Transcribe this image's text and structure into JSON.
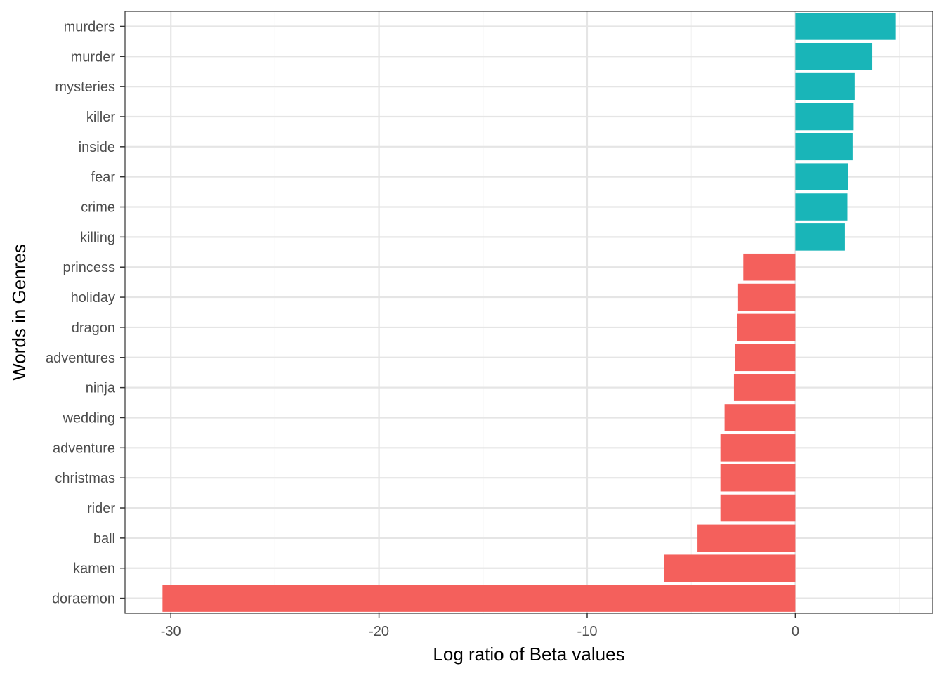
{
  "colors": {
    "positive": "#19B5B8",
    "negative": "#F4605C",
    "grid_major": "#E5E5E5",
    "grid_minor": "#F2F2F2",
    "panel_border": "#333333",
    "tick_text": "#4d4d4d"
  },
  "chart_data": {
    "type": "bar",
    "orientation": "horizontal",
    "xlabel": "Log ratio of Beta values",
    "ylabel": "Words in Genres",
    "xlim": [
      -32.2,
      6.6
    ],
    "x_ticks": [
      -30,
      -20,
      -10,
      0
    ],
    "x_tick_labels": [
      "-30",
      "-20",
      "-10",
      "0"
    ],
    "grid": true,
    "legend": "none",
    "categories": [
      "murders",
      "murder",
      "mysteries",
      "killer",
      "inside",
      "fear",
      "crime",
      "killing",
      "princess",
      "holiday",
      "dragon",
      "adventures",
      "ninja",
      "wedding",
      "adventure",
      "christmas",
      "rider",
      "ball",
      "kamen",
      "doraemon"
    ],
    "values": [
      4.8,
      3.7,
      2.85,
      2.8,
      2.75,
      2.55,
      2.5,
      2.38,
      -2.5,
      -2.75,
      -2.8,
      -2.9,
      -2.95,
      -3.4,
      -3.6,
      -3.6,
      -3.6,
      -4.7,
      -6.3,
      -30.4
    ]
  }
}
